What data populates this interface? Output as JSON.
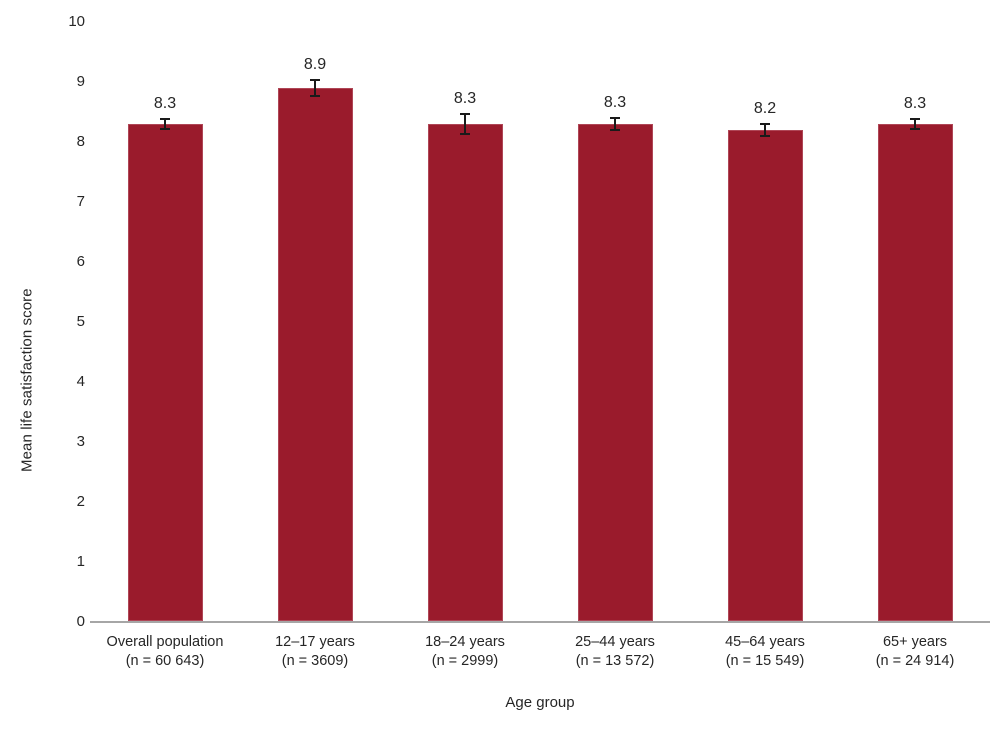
{
  "chart_data": {
    "type": "bar",
    "title": "",
    "xlabel": "Age group",
    "ylabel": "Mean life satisfaction score",
    "ylim": [
      0,
      10
    ],
    "yticks": [
      0,
      1,
      2,
      3,
      4,
      5,
      6,
      7,
      8,
      9,
      10
    ],
    "grid": false,
    "legend": null,
    "categories": [
      {
        "label": "Overall population",
        "n_label": "(n = 60 643)"
      },
      {
        "label": "12–17 years",
        "n_label": "(n = 3609)"
      },
      {
        "label": "18–24 years",
        "n_label": "(n = 2999)"
      },
      {
        "label": "25–44 years",
        "n_label": "(n = 13 572)"
      },
      {
        "label": "45–64 years",
        "n_label": "(n = 15 549)"
      },
      {
        "label": "65+ years",
        "n_label": "(n = 24 914)"
      }
    ],
    "values": [
      8.3,
      8.9,
      8.3,
      8.3,
      8.2,
      8.3
    ],
    "value_labels": [
      "8.3",
      "8.9",
      "8.3",
      "8.3",
      "8.2",
      "8.3"
    ],
    "errors": [
      0.08,
      0.13,
      0.16,
      0.1,
      0.1,
      0.09
    ],
    "colors": {
      "bar_fill": "#9A1B2C",
      "bar_edge": "#AF4656",
      "error_bar": "#1A1A1A",
      "axis_line": "#A6A6A6",
      "text": "#262626"
    }
  }
}
